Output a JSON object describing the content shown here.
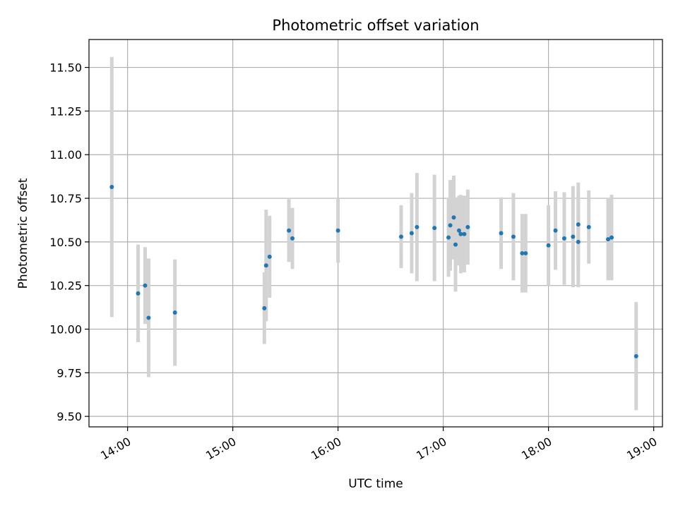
{
  "chart_data": {
    "type": "scatter",
    "title": "Photometric offset variation",
    "xlabel": "UTC time",
    "ylabel": "Photometric offset",
    "xlim": [
      "13:38",
      "19:05"
    ],
    "ylim": [
      9.44,
      11.66
    ],
    "grid": true,
    "xticks": [
      "14:00",
      "15:00",
      "16:00",
      "17:00",
      "18:00",
      "19:00"
    ],
    "yticks": [
      9.5,
      9.75,
      10.0,
      10.25,
      10.5,
      10.75,
      11.0,
      11.25,
      11.5
    ],
    "colors": {
      "point": "#1f77b4",
      "errorbar": "#d3d3d3",
      "grid": "#b0b0b0"
    },
    "points": [
      {
        "x": "13:51",
        "y": 10.815,
        "err": 0.745
      },
      {
        "x": "14:06",
        "y": 10.205,
        "err": 0.28
      },
      {
        "x": "14:10",
        "y": 10.25,
        "err": 0.22
      },
      {
        "x": "14:12",
        "y": 10.065,
        "err": 0.34
      },
      {
        "x": "14:27",
        "y": 10.095,
        "err": 0.305
      },
      {
        "x": "15:18",
        "y": 10.12,
        "err": 0.205
      },
      {
        "x": "15:19",
        "y": 10.365,
        "err": 0.32
      },
      {
        "x": "15:21",
        "y": 10.415,
        "err": 0.235
      },
      {
        "x": "15:32",
        "y": 10.565,
        "err": 0.18
      },
      {
        "x": "15:34",
        "y": 10.52,
        "err": 0.175
      },
      {
        "x": "16:00",
        "y": 10.565,
        "err": 0.185
      },
      {
        "x": "16:36",
        "y": 10.53,
        "err": 0.18
      },
      {
        "x": "16:42",
        "y": 10.55,
        "err": 0.23
      },
      {
        "x": "16:45",
        "y": 10.585,
        "err": 0.31
      },
      {
        "x": "16:55",
        "y": 10.58,
        "err": 0.305
      },
      {
        "x": "17:03",
        "y": 10.525,
        "err": 0.225
      },
      {
        "x": "17:04",
        "y": 10.595,
        "err": 0.26
      },
      {
        "x": "17:06",
        "y": 10.64,
        "err": 0.24
      },
      {
        "x": "17:07",
        "y": 10.485,
        "err": 0.27
      },
      {
        "x": "17:09",
        "y": 10.565,
        "err": 0.2
      },
      {
        "x": "17:10",
        "y": 10.545,
        "err": 0.225
      },
      {
        "x": "17:12",
        "y": 10.545,
        "err": 0.22
      },
      {
        "x": "17:14",
        "y": 10.585,
        "err": 0.215
      },
      {
        "x": "17:33",
        "y": 10.55,
        "err": 0.205
      },
      {
        "x": "17:40",
        "y": 10.53,
        "err": 0.25
      },
      {
        "x": "17:45",
        "y": 10.435,
        "err": 0.225
      },
      {
        "x": "17:47",
        "y": 10.435,
        "err": 0.225
      },
      {
        "x": "18:00",
        "y": 10.48,
        "err": 0.23
      },
      {
        "x": "18:04",
        "y": 10.565,
        "err": 0.225
      },
      {
        "x": "18:09",
        "y": 10.52,
        "err": 0.265
      },
      {
        "x": "18:14",
        "y": 10.53,
        "err": 0.29
      },
      {
        "x": "18:17",
        "y": 10.5,
        "err": 0.26
      },
      {
        "x": "18:17",
        "y": 10.6,
        "err": 0.24
      },
      {
        "x": "18:23",
        "y": 10.585,
        "err": 0.21
      },
      {
        "x": "18:34",
        "y": 10.515,
        "err": 0.235
      },
      {
        "x": "18:36",
        "y": 10.525,
        "err": 0.245
      },
      {
        "x": "18:50",
        "y": 9.845,
        "err": 0.31
      }
    ]
  }
}
